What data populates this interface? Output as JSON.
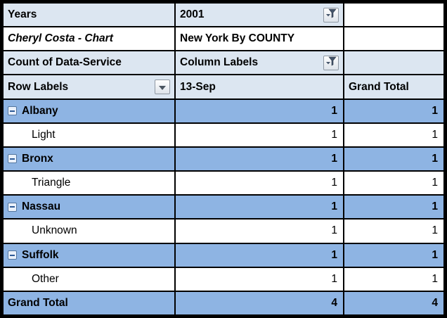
{
  "info_rows": [
    {
      "label": "Years",
      "value": "2001",
      "has_filter": true,
      "tone": "header",
      "third_tone": "white"
    },
    {
      "label": "Cheryl Costa - Chart",
      "value": "New York By COUNTY",
      "has_filter": false,
      "tone": "white",
      "third_tone": "white"
    },
    {
      "label": "Count of Data-Service",
      "value": "Column Labels",
      "has_filter": true,
      "tone": "header",
      "third_tone": "header"
    }
  ],
  "header_row": {
    "label": "Row Labels",
    "month": "13-Sep",
    "grand": "Grand Total"
  },
  "pivot_rows": [
    {
      "label": "Albany",
      "kind": "group",
      "month_value": "1",
      "grand_value": "1"
    },
    {
      "label": "Light",
      "kind": "detail",
      "month_value": "1",
      "grand_value": "1"
    },
    {
      "label": "Bronx",
      "kind": "group",
      "month_value": "1",
      "grand_value": "1"
    },
    {
      "label": "Triangle",
      "kind": "detail",
      "month_value": "1",
      "grand_value": "1"
    },
    {
      "label": "Nassau",
      "kind": "group",
      "month_value": "1",
      "grand_value": "1"
    },
    {
      "label": "Unknown",
      "kind": "detail",
      "month_value": "1",
      "grand_value": "1"
    },
    {
      "label": "Suffolk",
      "kind": "group",
      "month_value": "1",
      "grand_value": "1"
    },
    {
      "label": "Other",
      "kind": "detail",
      "month_value": "1",
      "grand_value": "1"
    },
    {
      "label": "Grand Total",
      "kind": "grand",
      "month_value": "4",
      "grand_value": "4"
    }
  ],
  "colors": {
    "header_bg": "#DCE6F1",
    "group_bg": "#8EB4E3",
    "white_bg": "#FFFFFF",
    "grid": "#000000",
    "text": "#000000"
  }
}
